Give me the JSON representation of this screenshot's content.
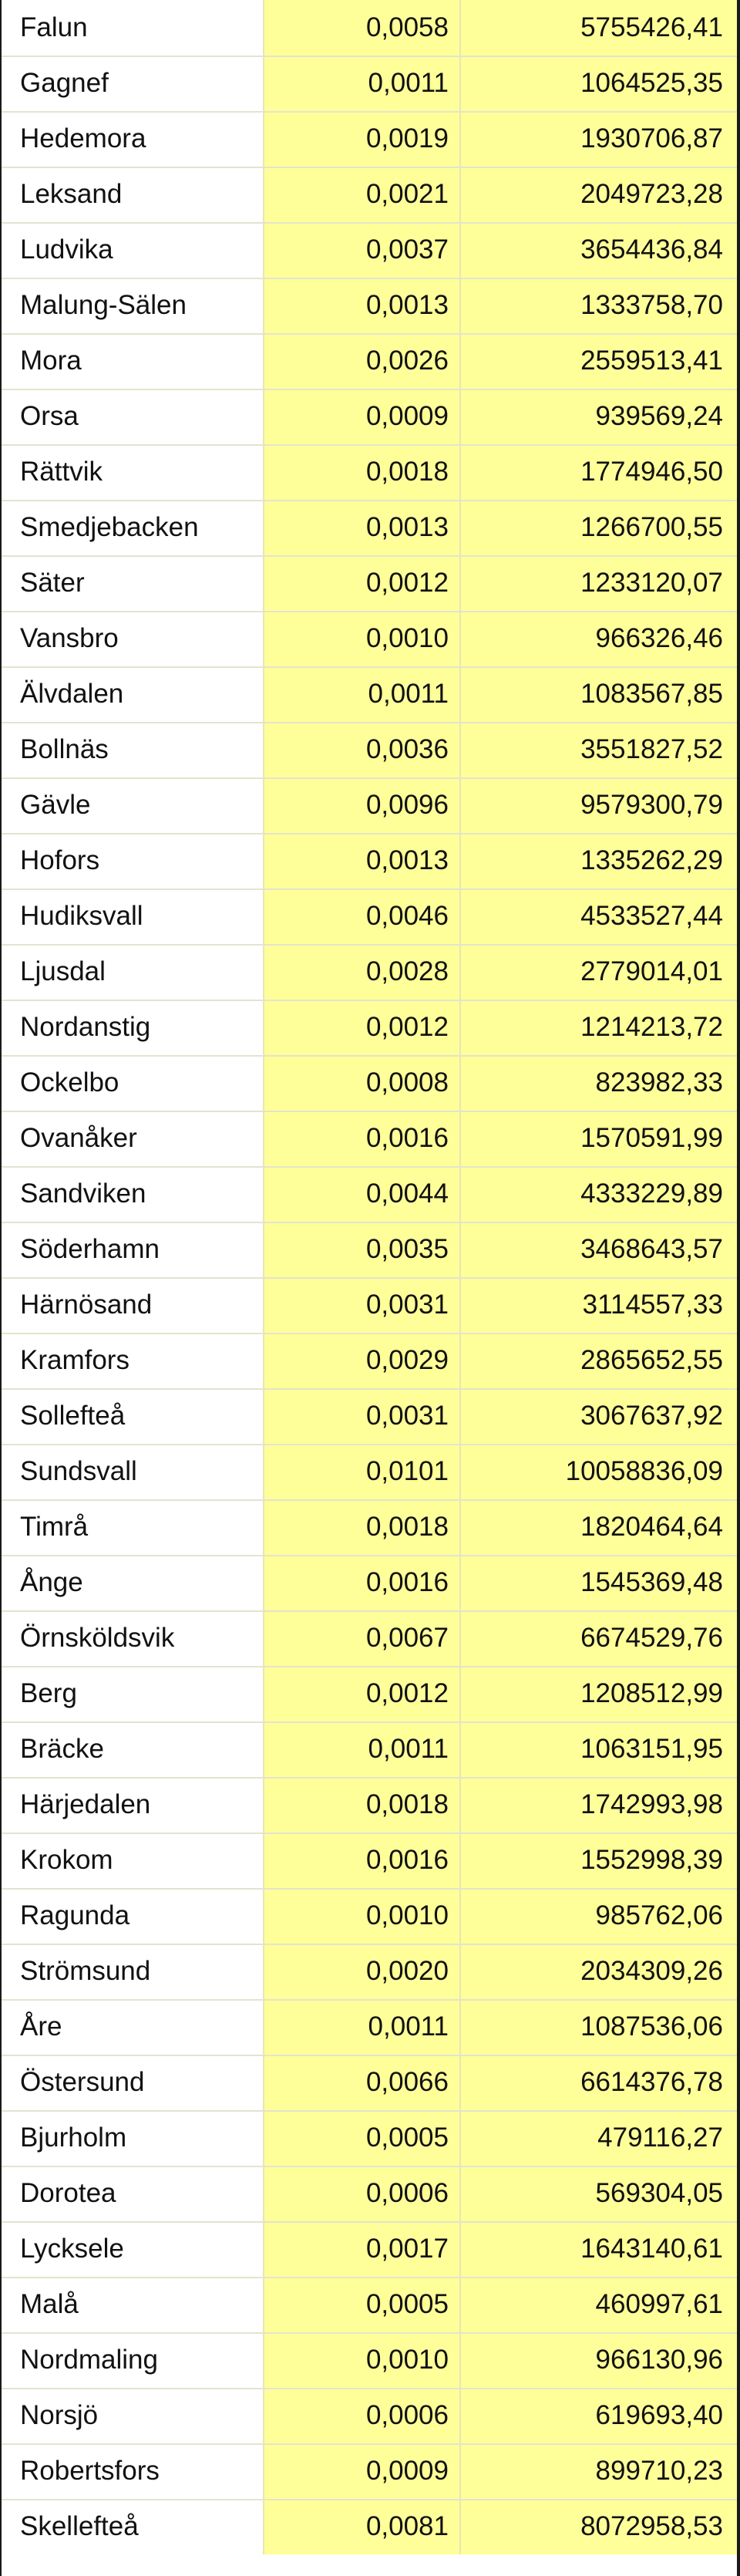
{
  "rows": [
    {
      "name": "Falun",
      "share": "0,0058",
      "amount": "5755426,41"
    },
    {
      "name": "Gagnef",
      "share": "0,0011",
      "amount": "1064525,35"
    },
    {
      "name": "Hedemora",
      "share": "0,0019",
      "amount": "1930706,87"
    },
    {
      "name": "Leksand",
      "share": "0,0021",
      "amount": "2049723,28"
    },
    {
      "name": "Ludvika",
      "share": "0,0037",
      "amount": "3654436,84"
    },
    {
      "name": "Malung-Sälen",
      "share": "0,0013",
      "amount": "1333758,70"
    },
    {
      "name": "Mora",
      "share": "0,0026",
      "amount": "2559513,41"
    },
    {
      "name": "Orsa",
      "share": "0,0009",
      "amount": "939569,24"
    },
    {
      "name": "Rättvik",
      "share": "0,0018",
      "amount": "1774946,50"
    },
    {
      "name": "Smedjebacken",
      "share": "0,0013",
      "amount": "1266700,55"
    },
    {
      "name": "Säter",
      "share": "0,0012",
      "amount": "1233120,07"
    },
    {
      "name": "Vansbro",
      "share": "0,0010",
      "amount": "966326,46"
    },
    {
      "name": "Älvdalen",
      "share": "0,0011",
      "amount": "1083567,85"
    },
    {
      "name": "Bollnäs",
      "share": "0,0036",
      "amount": "3551827,52"
    },
    {
      "name": "Gävle",
      "share": "0,0096",
      "amount": "9579300,79"
    },
    {
      "name": "Hofors",
      "share": "0,0013",
      "amount": "1335262,29"
    },
    {
      "name": "Hudiksvall",
      "share": "0,0046",
      "amount": "4533527,44"
    },
    {
      "name": "Ljusdal",
      "share": "0,0028",
      "amount": "2779014,01"
    },
    {
      "name": "Nordanstig",
      "share": "0,0012",
      "amount": "1214213,72"
    },
    {
      "name": "Ockelbo",
      "share": "0,0008",
      "amount": "823982,33"
    },
    {
      "name": "Ovanåker",
      "share": "0,0016",
      "amount": "1570591,99"
    },
    {
      "name": "Sandviken",
      "share": "0,0044",
      "amount": "4333229,89"
    },
    {
      "name": "Söderhamn",
      "share": "0,0035",
      "amount": "3468643,57"
    },
    {
      "name": "Härnösand",
      "share": "0,0031",
      "amount": "3114557,33"
    },
    {
      "name": "Kramfors",
      "share": "0,0029",
      "amount": "2865652,55"
    },
    {
      "name": "Sollefteå",
      "share": "0,0031",
      "amount": "3067637,92"
    },
    {
      "name": "Sundsvall",
      "share": "0,0101",
      "amount": "10058836,09"
    },
    {
      "name": "Timrå",
      "share": "0,0018",
      "amount": "1820464,64"
    },
    {
      "name": "Ånge",
      "share": "0,0016",
      "amount": "1545369,48"
    },
    {
      "name": "Örnsköldsvik",
      "share": "0,0067",
      "amount": "6674529,76"
    },
    {
      "name": "Berg",
      "share": "0,0012",
      "amount": "1208512,99"
    },
    {
      "name": "Bräcke",
      "share": "0,0011",
      "amount": "1063151,95"
    },
    {
      "name": "Härjedalen",
      "share": "0,0018",
      "amount": "1742993,98"
    },
    {
      "name": "Krokom",
      "share": "0,0016",
      "amount": "1552998,39"
    },
    {
      "name": "Ragunda",
      "share": "0,0010",
      "amount": "985762,06"
    },
    {
      "name": "Strömsund",
      "share": "0,0020",
      "amount": "2034309,26"
    },
    {
      "name": "Åre",
      "share": "0,0011",
      "amount": "1087536,06"
    },
    {
      "name": "Östersund",
      "share": "0,0066",
      "amount": "6614376,78"
    },
    {
      "name": "Bjurholm",
      "share": "0,0005",
      "amount": "479116,27"
    },
    {
      "name": "Dorotea",
      "share": "0,0006",
      "amount": "569304,05"
    },
    {
      "name": "Lycksele",
      "share": "0,0017",
      "amount": "1643140,61"
    },
    {
      "name": "Malå",
      "share": "0,0005",
      "amount": "460997,61"
    },
    {
      "name": "Nordmaling",
      "share": "0,0010",
      "amount": "966130,96"
    },
    {
      "name": "Norsjö",
      "share": "0,0006",
      "amount": "619693,40"
    },
    {
      "name": "Robertsfors",
      "share": "0,0009",
      "amount": "899710,23"
    },
    {
      "name": "Skellefteå",
      "share": "0,0081",
      "amount": "8072958,53"
    }
  ]
}
